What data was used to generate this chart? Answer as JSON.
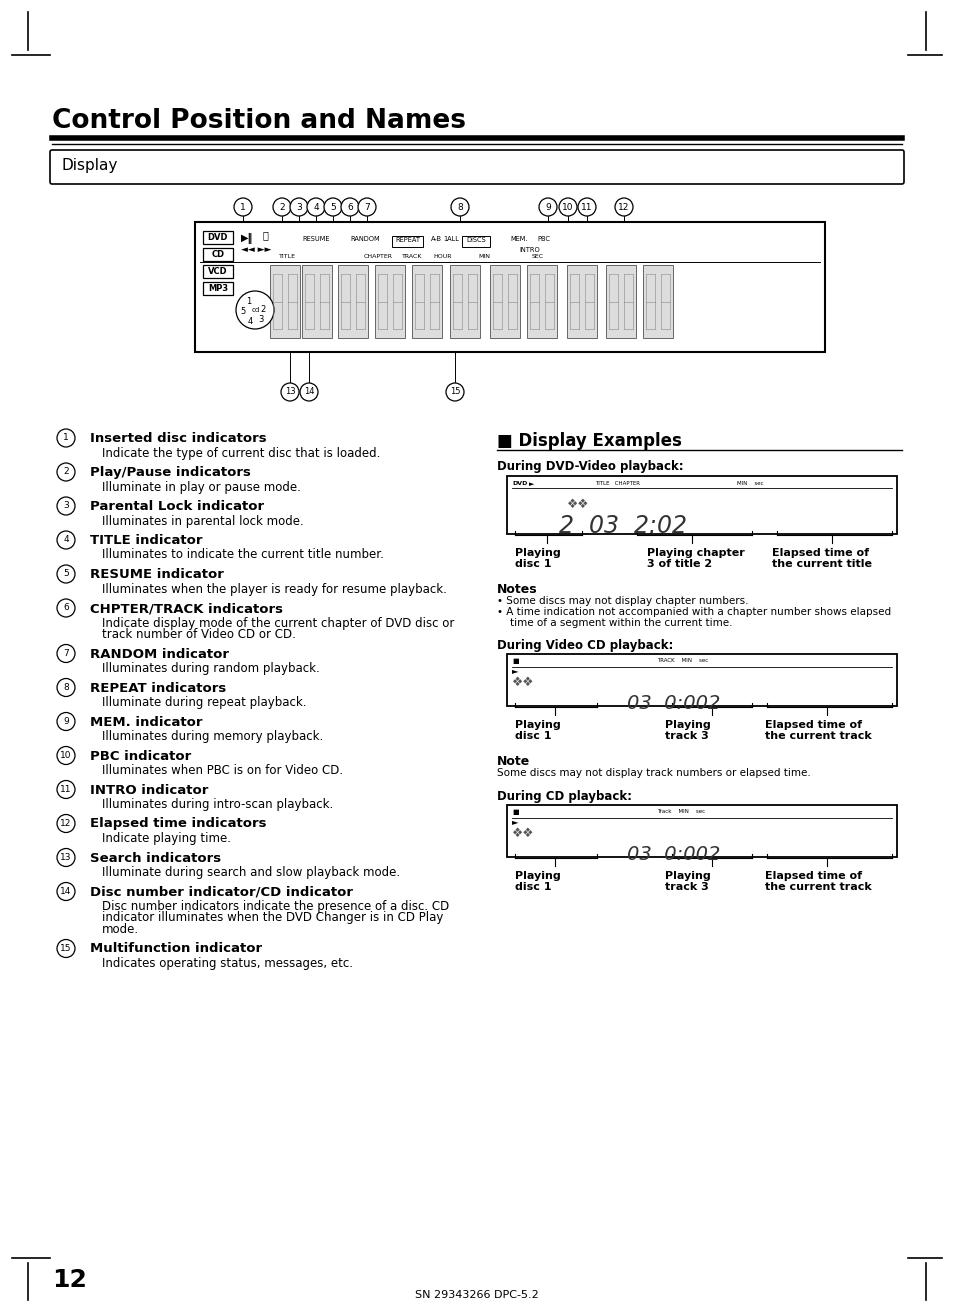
{
  "title": "Control Position and Names",
  "section": "Display",
  "bg_color": "#ffffff",
  "page_number": "12",
  "footer": "SN 29343266 DPC-5.2",
  "left_items": [
    {
      "num": "1",
      "heading": "Inserted disc indicators",
      "body": "Indicate the type of current disc that is loaded."
    },
    {
      "num": "2",
      "heading": "Play/Pause indicators",
      "body": "Illuminate in play or pause mode."
    },
    {
      "num": "3",
      "heading": "Parental Lock indicator",
      "body": "Illuminates in parental lock mode."
    },
    {
      "num": "4",
      "heading": "TITLE indicator",
      "body": "Illuminates to indicate the current title number."
    },
    {
      "num": "5",
      "heading": "RESUME indicator",
      "body": "Illuminates when the player is ready for resume playback."
    },
    {
      "num": "6",
      "heading": "CHPTER/TRACK indicators",
      "body": "Indicate display mode of the current chapter of DVD disc or\ntrack number of Video CD or CD."
    },
    {
      "num": "7",
      "heading": "RANDOM indicator",
      "body": "Illuminates during random playback."
    },
    {
      "num": "8",
      "heading": "REPEAT indicators",
      "body": "Illuminate during repeat playback."
    },
    {
      "num": "9",
      "heading": "MEM. indicator",
      "body": "Illuminates during memory playback."
    },
    {
      "num": "10",
      "heading": "PBC indicator",
      "body": "Illuminates when PBC is on for Video CD."
    },
    {
      "num": "11",
      "heading": "INTRO indicator",
      "body": "Illuminates during intro-scan playback."
    },
    {
      "num": "12",
      "heading": "Elapsed time indicators",
      "body": "Indicate playing time."
    },
    {
      "num": "13",
      "heading": "Search indicators",
      "body": "Illuminate during search and slow playback mode."
    },
    {
      "num": "14",
      "heading": "Disc number indicator/CD indicator",
      "body": "Disc number indicators indicate the presence of a disc. CD\nindicator illuminates when the DVD Changer is in CD Play\nmode."
    },
    {
      "num": "15",
      "heading": "Multifunction indicator",
      "body": "Indicates operating status, messages, etc."
    }
  ],
  "display_examples_title": "■ Display Examples",
  "dvd_example_title": "During DVD-Video playback:",
  "dvd_example_labels": [
    "Playing\ndisc 1",
    "Playing chapter\n3 of title 2",
    "Elapsed time of\nthe current title"
  ],
  "notes_title": "Notes",
  "notes": [
    "Some discs may not display chapter numbers.",
    "A time indication not accompanied with a chapter number shows elapsed\n time of a segment within the current time."
  ],
  "vcd_example_title": "During Video CD playback:",
  "vcd_example_labels": [
    "Playing\ndisc 1",
    "Playing\ntrack 3",
    "Elapsed time of\nthe current track"
  ],
  "note_title": "Note",
  "note_text": "Some discs may not display track numbers or elapsed time.",
  "cd_example_title": "During CD playback:",
  "cd_example_labels": [
    "Playing\ndisc 1",
    "Playing\ntrack 3",
    "Elapsed time of\nthe current track"
  ]
}
